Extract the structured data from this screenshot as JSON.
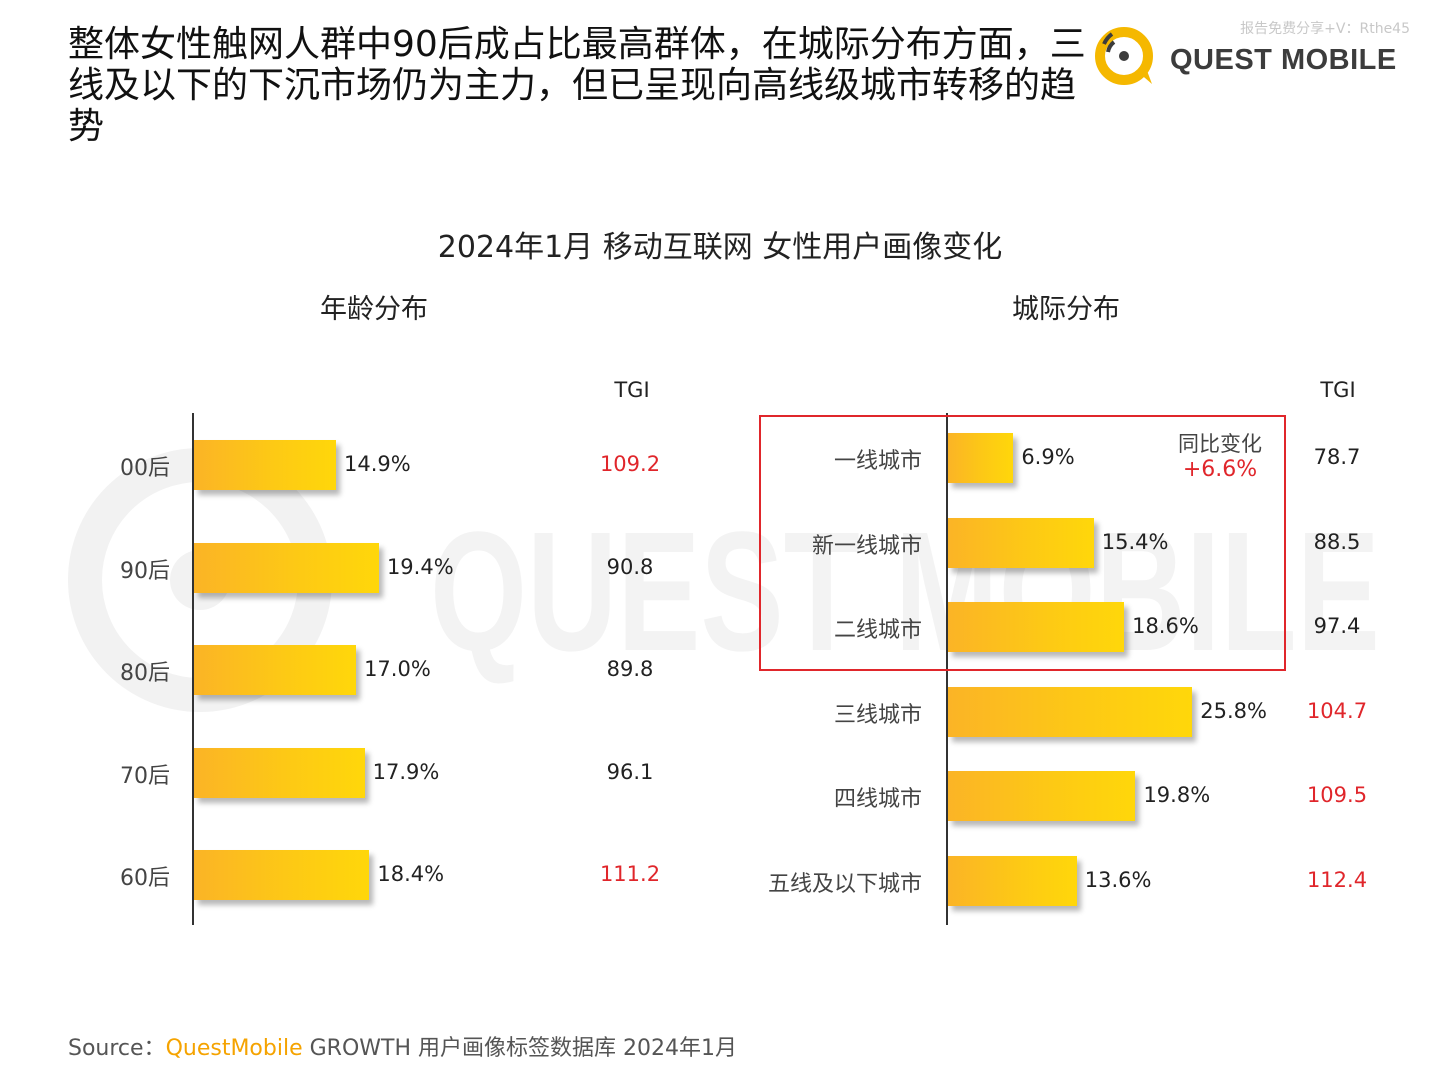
{
  "headline": "整体女性触网人群中90后成占比最高群体，在城际分布方面，三线及以下的下沉市场仍为主力，但已呈现向高线级城市转移的趋势",
  "watermark_top": "报告免费分享+V：Rthe45",
  "logo": {
    "text": "QUEST MOBILE",
    "watermark": "QUEST MOBILE"
  },
  "colors": {
    "bar": "#fdc915",
    "highlight": "#e0262b",
    "brand": "#f5a300"
  },
  "chart_data": [
    {
      "type": "bar",
      "orientation": "horizontal",
      "title": "2024年1月 移动互联网 女性用户画像变化",
      "panel_title": "年龄分布",
      "tgi_header": "TGI",
      "categories": [
        "00后",
        "90后",
        "80后",
        "70后",
        "60后"
      ],
      "values": [
        14.9,
        19.4,
        17.0,
        17.9,
        18.4
      ],
      "value_labels": [
        "14.9%",
        "19.4%",
        "17.0%",
        "17.9%",
        "18.4%"
      ],
      "tgi": [
        "109.2",
        "90.8",
        "89.8",
        "96.1",
        "111.2"
      ],
      "tgi_highlight": [
        true,
        false,
        false,
        false,
        true
      ],
      "xlim": [
        0,
        30
      ],
      "unit": "%"
    },
    {
      "type": "bar",
      "orientation": "horizontal",
      "panel_title": "城际分布",
      "tgi_header": "TGI",
      "categories": [
        "一线城市",
        "新一线城市",
        "二线城市",
        "三线城市",
        "四线城市",
        "五线及以下城市"
      ],
      "values": [
        6.9,
        15.4,
        18.6,
        25.8,
        19.8,
        13.6
      ],
      "value_labels": [
        "6.9%",
        "15.4%",
        "18.6%",
        "25.8%",
        "19.8%",
        "13.6%"
      ],
      "tgi": [
        "78.7",
        "88.5",
        "97.4",
        "104.7",
        "109.5",
        "112.4"
      ],
      "tgi_highlight": [
        false,
        false,
        false,
        true,
        true,
        true
      ],
      "annotation": {
        "label": "同比变化",
        "value": "+6.6%"
      },
      "xlim": [
        0,
        30
      ],
      "unit": "%"
    }
  ],
  "source": {
    "prefix": "Source：",
    "brand": "QuestMobile",
    "rest": " GROWTH 用户画像标签数据库 2024年1月"
  }
}
